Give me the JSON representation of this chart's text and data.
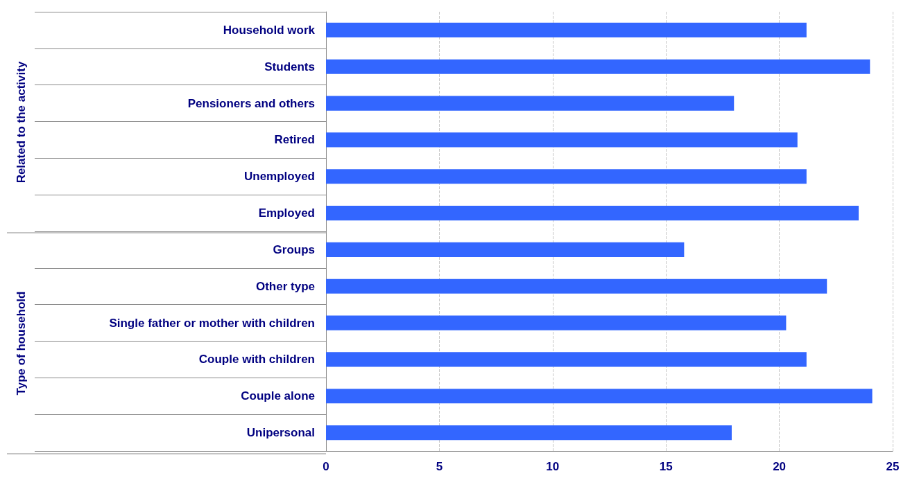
{
  "chart_data": {
    "type": "bar",
    "orientation": "horizontal",
    "categories": [
      "Household work",
      "Students",
      "Pensioners and others",
      "Retired",
      "Unemployed",
      "Employed",
      "Groups",
      "Other type",
      "Single father or mother with children",
      "Couple with children",
      "Couple alone",
      "Unipersonal"
    ],
    "values": [
      21.2,
      24.0,
      18.0,
      20.8,
      21.2,
      23.5,
      15.8,
      22.1,
      20.3,
      21.2,
      24.1,
      17.9
    ],
    "color": "#3366ff",
    "xlim": [
      0,
      25
    ],
    "xticks": [
      0,
      5,
      10,
      15,
      20,
      25
    ],
    "grid": "x",
    "annotations": [
      "Related to the activity",
      "Type of household"
    ]
  }
}
